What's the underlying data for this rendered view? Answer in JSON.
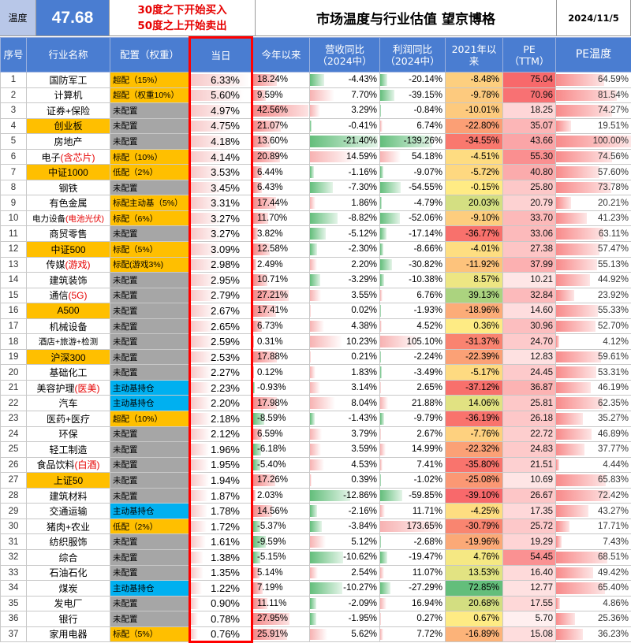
{
  "header": {
    "temp_label": "温度",
    "temp_value": "47.68",
    "rule_line1": "30度之下开始买入",
    "rule_line2": "50度之上开始卖出",
    "title": "市场温度与行业估值 望京博格",
    "date": "2024/11/5"
  },
  "columns": [
    "序号",
    "行业名称",
    "配置（权重）",
    "当日",
    "今年以来",
    "营收同比\n（2024中）",
    "利润同比\n（2024中）",
    "2021年以\n来",
    "PE\n（TTM）",
    "PE温度"
  ],
  "colors": {
    "header_blue": "#4a7dd1",
    "highlight_orange": "#ffbf00",
    "config_gray": "#a6a6a6",
    "config_blue": "#00b0f0",
    "rule_red": "#e60000",
    "bar_red": "#f4b6b6",
    "bar_green": "#63be7b"
  },
  "rows": [
    {
      "idx": "1",
      "name": "国防军工",
      "name_red": "",
      "name_hl": false,
      "cfg": "超配（15%）",
      "cfg_c": "w",
      "day": "6.33%",
      "ytd": "18.24%",
      "rev": "-4.43%",
      "prof": "-20.14%",
      "since21": "-8.48%",
      "pe": "75.04",
      "pt": "64.59%"
    },
    {
      "idx": "2",
      "name": "计算机",
      "name_red": "",
      "name_hl": false,
      "cfg": "超配（权重10%）",
      "cfg_c": "w",
      "day": "5.60%",
      "ytd": "9.59%",
      "rev": "7.70%",
      "prof": "-39.15%",
      "since21": "-9.78%",
      "pe": "70.96",
      "pt": "81.54%"
    },
    {
      "idx": "3",
      "name": "证券+保险",
      "name_red": "",
      "name_hl": false,
      "cfg": "未配置",
      "cfg_c": "g",
      "day": "4.97%",
      "ytd": "42.56%",
      "rev": "3.29%",
      "prof": "-0.84%",
      "since21": "-10.01%",
      "pe": "18.25",
      "pt": "74.27%"
    },
    {
      "idx": "4",
      "name": "创业板",
      "name_red": "",
      "name_hl": true,
      "cfg": "未配置",
      "cfg_c": "g",
      "day": "4.75%",
      "ytd": "21.07%",
      "rev": "-0.41%",
      "prof": "6.74%",
      "since21": "-22.80%",
      "pe": "35.07",
      "pt": "19.51%"
    },
    {
      "idx": "5",
      "name": "房地产",
      "name_red": "",
      "name_hl": false,
      "cfg": "未配置",
      "cfg_c": "g",
      "day": "4.18%",
      "ytd": "13.60%",
      "rev": "-21.40%",
      "prof": "-139.26%",
      "since21": "-34.55%",
      "pe": "43.66",
      "pt": "100.00%"
    },
    {
      "idx": "6",
      "name": "电子",
      "name_red": "(含芯片)",
      "name_hl": false,
      "cfg": "标配（10%）",
      "cfg_c": "w",
      "day": "4.14%",
      "ytd": "20.89%",
      "rev": "14.59%",
      "prof": "54.18%",
      "since21": "-4.51%",
      "pe": "55.30",
      "pt": "74.56%"
    },
    {
      "idx": "7",
      "name": "中证1000",
      "name_red": "",
      "name_hl": true,
      "cfg": "低配（2%）",
      "cfg_c": "w",
      "day": "3.53%",
      "ytd": "6.44%",
      "rev": "-1.16%",
      "prof": "-9.07%",
      "since21": "-5.72%",
      "pe": "40.80",
      "pt": "57.60%"
    },
    {
      "idx": "8",
      "name": "钢铁",
      "name_red": "",
      "name_hl": false,
      "cfg": "未配置",
      "cfg_c": "g",
      "day": "3.45%",
      "ytd": "6.43%",
      "rev": "-7.30%",
      "prof": "-54.55%",
      "since21": "-0.15%",
      "pe": "25.80",
      "pt": "73.78%"
    },
    {
      "idx": "9",
      "name": "有色金属",
      "name_red": "",
      "name_hl": false,
      "cfg": "标配主动基（5%）",
      "cfg_c": "w",
      "day": "3.31%",
      "ytd": "17.44%",
      "rev": "1.86%",
      "prof": "-4.79%",
      "since21": "20.03%",
      "pe": "20.79",
      "pt": "20.21%"
    },
    {
      "idx": "10",
      "name": "电力设备",
      "name_red": "(电池光伏)",
      "name_hl": false,
      "small": true,
      "cfg": "标配（6%）",
      "cfg_c": "w",
      "day": "3.27%",
      "ytd": "11.70%",
      "rev": "-8.82%",
      "prof": "-52.06%",
      "since21": "-9.10%",
      "pe": "33.70",
      "pt": "41.23%"
    },
    {
      "idx": "11",
      "name": "商贸零售",
      "name_red": "",
      "name_hl": false,
      "cfg": "未配置",
      "cfg_c": "g",
      "day": "3.27%",
      "ytd": "3.82%",
      "rev": "-5.12%",
      "prof": "-17.14%",
      "since21": "-36.77%",
      "pe": "33.06",
      "pt": "63.11%"
    },
    {
      "idx": "12",
      "name": "中证500",
      "name_red": "",
      "name_hl": true,
      "cfg": "标配（5%）",
      "cfg_c": "w",
      "day": "3.09%",
      "ytd": "12.58%",
      "rev": "-2.30%",
      "prof": "-8.66%",
      "since21": "-4.01%",
      "pe": "27.38",
      "pt": "57.47%"
    },
    {
      "idx": "13",
      "name": "传媒",
      "name_red": "(游戏)",
      "name_hl": false,
      "cfg": "标配(游戏3%)",
      "cfg_c": "w",
      "day": "2.98%",
      "ytd": "2.49%",
      "rev": "2.20%",
      "prof": "-30.82%",
      "since21": "-11.92%",
      "pe": "37.99",
      "pt": "55.13%"
    },
    {
      "idx": "14",
      "name": "建筑装饰",
      "name_red": "",
      "name_hl": false,
      "cfg": "未配置",
      "cfg_c": "g",
      "day": "2.95%",
      "ytd": "10.71%",
      "rev": "-3.29%",
      "prof": "-10.38%",
      "since21": "8.57%",
      "pe": "10.21",
      "pt": "44.92%"
    },
    {
      "idx": "15",
      "name": "通信",
      "name_red": "(5G)",
      "name_hl": false,
      "cfg": "未配置",
      "cfg_c": "g",
      "day": "2.79%",
      "ytd": "27.21%",
      "rev": "3.55%",
      "prof": "6.76%",
      "since21": "39.13%",
      "pe": "32.84",
      "pt": "23.92%"
    },
    {
      "idx": "16",
      "name": "A500",
      "name_red": "",
      "name_hl": true,
      "cfg": "未配置",
      "cfg_c": "g",
      "day": "2.67%",
      "ytd": "17.41%",
      "rev": "0.02%",
      "prof": "-1.93%",
      "since21": "-18.96%",
      "pe": "14.60",
      "pt": "55.33%"
    },
    {
      "idx": "17",
      "name": "机械设备",
      "name_red": "",
      "name_hl": false,
      "cfg": "未配置",
      "cfg_c": "g",
      "day": "2.65%",
      "ytd": "6.73%",
      "rev": "4.38%",
      "prof": "4.52%",
      "since21": "0.36%",
      "pe": "30.96",
      "pt": "52.70%"
    },
    {
      "idx": "18",
      "name": "酒店+旅游+检测",
      "name_red": "",
      "name_hl": false,
      "small": true,
      "cfg": "未配置",
      "cfg_c": "g",
      "day": "2.59%",
      "ytd": "0.31%",
      "rev": "10.23%",
      "prof": "105.10%",
      "since21": "-31.37%",
      "pe": "24.70",
      "pt": "4.12%"
    },
    {
      "idx": "19",
      "name": "沪深300",
      "name_red": "",
      "name_hl": true,
      "cfg": "未配置",
      "cfg_c": "g",
      "day": "2.53%",
      "ytd": "17.88%",
      "rev": "0.21%",
      "prof": "-2.24%",
      "since21": "-22.39%",
      "pe": "12.83",
      "pt": "59.61%"
    },
    {
      "idx": "20",
      "name": "基础化工",
      "name_red": "",
      "name_hl": false,
      "cfg": "未配置",
      "cfg_c": "g",
      "day": "2.27%",
      "ytd": "0.12%",
      "rev": "1.83%",
      "prof": "-3.49%",
      "since21": "-5.17%",
      "pe": "24.45",
      "pt": "53.31%"
    },
    {
      "idx": "21",
      "name": "美容护理",
      "name_red": "(医美)",
      "name_hl": false,
      "cfg": "主动基持仓",
      "cfg_c": "b",
      "day": "2.23%",
      "ytd": "-0.93%",
      "rev": "3.14%",
      "prof": "2.65%",
      "since21": "-37.12%",
      "pe": "36.87",
      "pt": "46.19%"
    },
    {
      "idx": "22",
      "name": "汽车",
      "name_red": "",
      "name_hl": false,
      "cfg": "主动基持仓",
      "cfg_c": "b",
      "day": "2.20%",
      "ytd": "17.98%",
      "rev": "8.04%",
      "prof": "21.88%",
      "since21": "14.06%",
      "pe": "25.81",
      "pt": "62.35%"
    },
    {
      "idx": "23",
      "name": "医药+医疗",
      "name_red": "",
      "name_hl": false,
      "cfg": "超配（10%）",
      "cfg_c": "w",
      "day": "2.18%",
      "ytd": "-8.59%",
      "rev": "-1.43%",
      "prof": "-9.79%",
      "since21": "-36.19%",
      "pe": "26.18",
      "pt": "35.27%"
    },
    {
      "idx": "24",
      "name": "环保",
      "name_red": "",
      "name_hl": false,
      "cfg": "未配置",
      "cfg_c": "g",
      "day": "2.12%",
      "ytd": "6.59%",
      "rev": "3.79%",
      "prof": "2.67%",
      "since21": "-7.76%",
      "pe": "22.72",
      "pt": "46.89%"
    },
    {
      "idx": "25",
      "name": "轻工制造",
      "name_red": "",
      "name_hl": false,
      "cfg": "未配置",
      "cfg_c": "g",
      "day": "1.96%",
      "ytd": "-6.18%",
      "rev": "3.59%",
      "prof": "14.99%",
      "since21": "-22.32%",
      "pe": "24.83",
      "pt": "37.77%"
    },
    {
      "idx": "26",
      "name": "食品饮料",
      "name_red": "(白酒)",
      "name_hl": false,
      "cfg": "未配置",
      "cfg_c": "g",
      "day": "1.95%",
      "ytd": "-5.40%",
      "rev": "4.53%",
      "prof": "7.41%",
      "since21": "-35.80%",
      "pe": "21.51",
      "pt": "4.44%"
    },
    {
      "idx": "27",
      "name": "上证50",
      "name_red": "",
      "name_hl": true,
      "cfg": "未配置",
      "cfg_c": "g",
      "day": "1.94%",
      "ytd": "17.26%",
      "rev": "0.39%",
      "prof": "-1.02%",
      "since21": "-25.08%",
      "pe": "10.69",
      "pt": "65.83%"
    },
    {
      "idx": "28",
      "name": "建筑材料",
      "name_red": "",
      "name_hl": false,
      "cfg": "未配置",
      "cfg_c": "g",
      "day": "1.87%",
      "ytd": "2.03%",
      "rev": "-12.86%",
      "prof": "-59.85%",
      "since21": "-39.10%",
      "pe": "26.67",
      "pt": "72.42%"
    },
    {
      "idx": "29",
      "name": "交通运输",
      "name_red": "",
      "name_hl": false,
      "cfg": "主动基持仓",
      "cfg_c": "b",
      "day": "1.78%",
      "ytd": "14.56%",
      "rev": "-2.16%",
      "prof": "11.71%",
      "since21": "-4.25%",
      "pe": "17.35",
      "pt": "43.27%"
    },
    {
      "idx": "30",
      "name": "猪肉+农业",
      "name_red": "",
      "name_hl": false,
      "cfg": "低配（2%）",
      "cfg_c": "w",
      "day": "1.72%",
      "ytd": "-5.37%",
      "rev": "-3.84%",
      "prof": "173.65%",
      "since21": "-30.79%",
      "pe": "25.72",
      "pt": "17.71%"
    },
    {
      "idx": "31",
      "name": "纺织服饰",
      "name_red": "",
      "name_hl": false,
      "cfg": "未配置",
      "cfg_c": "g",
      "day": "1.61%",
      "ytd": "-9.59%",
      "rev": "5.12%",
      "prof": "-2.68%",
      "since21": "-19.96%",
      "pe": "19.29",
      "pt": "7.43%"
    },
    {
      "idx": "32",
      "name": "综合",
      "name_red": "",
      "name_hl": false,
      "cfg": "未配置",
      "cfg_c": "g",
      "day": "1.38%",
      "ytd": "-5.15%",
      "rev": "-10.62%",
      "prof": "-19.47%",
      "since21": "4.76%",
      "pe": "54.45",
      "pt": "68.51%"
    },
    {
      "idx": "33",
      "name": "石油石化",
      "name_red": "",
      "name_hl": false,
      "cfg": "未配置",
      "cfg_c": "g",
      "day": "1.35%",
      "ytd": "5.14%",
      "rev": "2.54%",
      "prof": "11.07%",
      "since21": "13.53%",
      "pe": "16.40",
      "pt": "49.42%"
    },
    {
      "idx": "34",
      "name": "煤炭",
      "name_red": "",
      "name_hl": false,
      "cfg": "主动基持仓",
      "cfg_c": "b",
      "day": "1.22%",
      "ytd": "7.19%",
      "rev": "-10.27%",
      "prof": "-27.29%",
      "since21": "72.85%",
      "pe": "12.77",
      "pt": "65.40%"
    },
    {
      "idx": "35",
      "name": "发电厂",
      "name_red": "",
      "name_hl": false,
      "cfg": "未配置",
      "cfg_c": "g",
      "day": "0.90%",
      "ytd": "11.11%",
      "rev": "-2.09%",
      "prof": "16.94%",
      "since21": "20.68%",
      "pe": "17.55",
      "pt": "4.86%"
    },
    {
      "idx": "36",
      "name": "银行",
      "name_red": "",
      "name_hl": false,
      "cfg": "未配置",
      "cfg_c": "g",
      "day": "0.78%",
      "ytd": "27.95%",
      "rev": "-1.95%",
      "prof": "0.27%",
      "since21": "0.67%",
      "pe": "5.70",
      "pt": "25.36%"
    },
    {
      "idx": "37",
      "name": "家用电器",
      "name_red": "",
      "name_hl": false,
      "cfg": "标配（5%）",
      "cfg_c": "w",
      "day": "0.76%",
      "ytd": "25.91%",
      "rev": "5.62%",
      "prof": "7.72%",
      "since21": "-16.89%",
      "pe": "15.08",
      "pt": "36.23%"
    }
  ]
}
